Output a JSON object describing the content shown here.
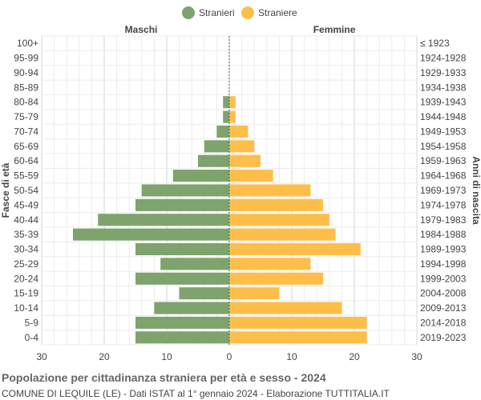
{
  "chart_data": {
    "type": "bar",
    "orientation": "horizontal-population-pyramid",
    "title": "Popolazione per cittadinanza straniera per età e sesso - 2024",
    "subtitle": "COMUNE DI LEQUILE (LE) - Dati ISTAT al 1° gennaio 2024 - Elaborazione TUTTITALIA.IT",
    "left_header": "Maschi",
    "right_header": "Femmine",
    "ylabel_left": "Fasce di età",
    "ylabel_right": "Anni di nascita",
    "xlim": [
      -30,
      30
    ],
    "x_ticks": [
      30,
      20,
      10,
      0,
      10,
      20,
      30
    ],
    "grid": true,
    "legend_position": "top-center",
    "categories": [
      "100+",
      "95-99",
      "90-94",
      "85-89",
      "80-84",
      "75-79",
      "70-74",
      "65-69",
      "60-64",
      "55-59",
      "50-54",
      "45-49",
      "40-44",
      "35-39",
      "30-34",
      "25-29",
      "20-24",
      "15-19",
      "10-14",
      "5-9",
      "0-4"
    ],
    "birth_years": [
      "≤ 1923",
      "1924-1928",
      "1929-1933",
      "1934-1938",
      "1939-1943",
      "1944-1948",
      "1949-1953",
      "1954-1958",
      "1959-1963",
      "1964-1968",
      "1969-1973",
      "1974-1978",
      "1979-1983",
      "1984-1988",
      "1989-1993",
      "1994-1998",
      "1999-2003",
      "2004-2008",
      "2009-2013",
      "2014-2018",
      "2019-2023"
    ],
    "series": [
      {
        "name": "Stranieri",
        "side": "left",
        "color": "#7ea36d",
        "values": [
          0,
          0,
          0,
          0,
          1,
          1,
          2,
          4,
          5,
          9,
          14,
          15,
          21,
          25,
          15,
          11,
          15,
          8,
          12,
          15,
          15
        ]
      },
      {
        "name": "Straniere",
        "side": "right",
        "color": "#fdbf4a",
        "values": [
          0,
          0,
          0,
          0,
          1,
          1,
          3,
          4,
          5,
          7,
          13,
          15,
          16,
          17,
          21,
          13,
          15,
          8,
          18,
          22,
          22
        ]
      }
    ]
  }
}
